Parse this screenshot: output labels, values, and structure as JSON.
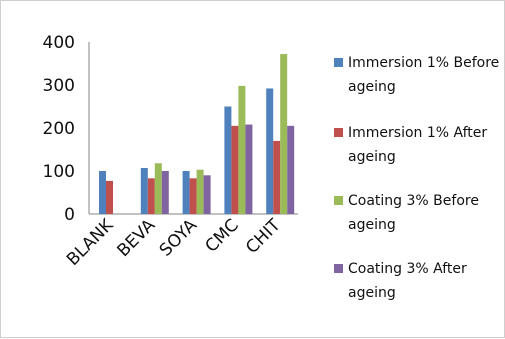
{
  "chart_data": {
    "type": "bar",
    "categories": [
      "BLANK",
      "BEVA",
      "SOYA",
      "CMC",
      "CHIT"
    ],
    "series": [
      {
        "name": "Immersion 1% Before ageing",
        "color": "#4f81bd",
        "values": [
          100,
          107,
          100,
          250,
          292
        ]
      },
      {
        "name": "Immersion 1% After ageing",
        "color": "#c0504d",
        "values": [
          77,
          83,
          83,
          205,
          170
        ]
      },
      {
        "name": "Coating 3% Before ageing",
        "color": "#9bbb59",
        "values": [
          null,
          118,
          103,
          298,
          372
        ]
      },
      {
        "name": "Coating 3% After ageing",
        "color": "#8064a2",
        "values": [
          null,
          100,
          90,
          208,
          205
        ]
      }
    ],
    "ylim": [
      0,
      400
    ],
    "yticks": [
      "0",
      "100",
      "200",
      "300",
      "400"
    ],
    "grid": false,
    "legend_position": "right"
  }
}
